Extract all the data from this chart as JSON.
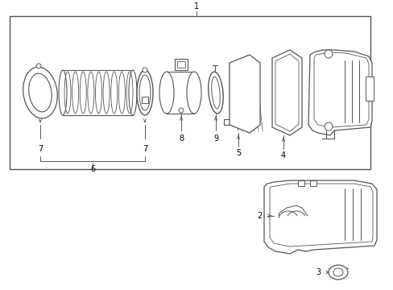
{
  "bg_color": "#ffffff",
  "line_color": "#555555",
  "fig_width": 4.89,
  "fig_height": 3.6,
  "dpi": 100
}
